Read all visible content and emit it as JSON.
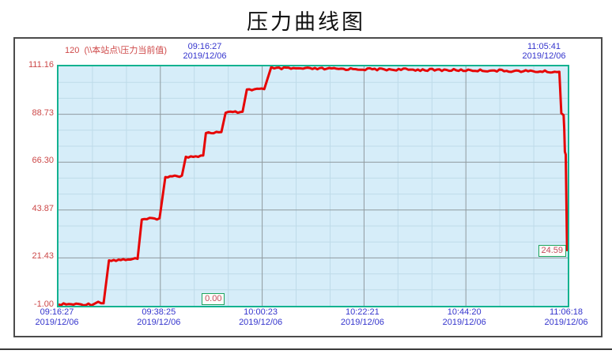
{
  "title": "压力曲线图",
  "header": {
    "pen_scale": "120",
    "pen_name": "(\\\\本站点\\压力当前值)",
    "cursor_time": "09:16:27",
    "cursor_date": "2019/12/06",
    "end_time": "11:05:41",
    "end_date": "2019/12/06"
  },
  "chart_data": {
    "type": "line",
    "title": "压力曲线图",
    "xlabel": "",
    "ylabel": "",
    "x_start": "09:16:27",
    "x_end": "11:06:18",
    "date": "2019/12/06",
    "ylim": [
      -1.0,
      111.16
    ],
    "y_ticks": [
      "111.16",
      "88.73",
      "66.30",
      "43.87",
      "21.43",
      "-1.00"
    ],
    "x_ticks": [
      {
        "time": "09:16:27",
        "date": "2019/12/06"
      },
      {
        "time": "09:38:25",
        "date": "2019/12/06"
      },
      {
        "time": "10:00:23",
        "date": "2019/12/06"
      },
      {
        "time": "10:22:21",
        "date": "2019/12/06"
      },
      {
        "time": "10:44:20",
        "date": "2019/12/06"
      },
      {
        "time": "11:06:18",
        "date": "2019/12/06"
      }
    ],
    "grid": true,
    "legend": "none",
    "plot_bg": "#d6edf9",
    "minor_grid_color": "#bedbe9",
    "major_grid_color": "#8f9a9e",
    "border_color": "#12b290",
    "series": [
      {
        "name": "\\\\本站点\\压力当前值",
        "color": "#e60505",
        "points": [
          {
            "t": "09:16:27",
            "v": -0.3
          },
          {
            "t": "09:24:00",
            "v": -0.3
          },
          {
            "t": "09:25:00",
            "v": 0.9
          },
          {
            "t": "09:25:40",
            "v": 0.2
          },
          {
            "t": "09:26:10",
            "v": 0.2
          },
          {
            "t": "09:27:20",
            "v": 20.3
          },
          {
            "t": "09:33:30",
            "v": 21.0
          },
          {
            "t": "09:34:25",
            "v": 39.4
          },
          {
            "t": "09:38:15",
            "v": 40.0
          },
          {
            "t": "09:39:30",
            "v": 59.3
          },
          {
            "t": "09:43:05",
            "v": 60.0
          },
          {
            "t": "09:43:55",
            "v": 68.8
          },
          {
            "t": "09:47:40",
            "v": 69.4
          },
          {
            "t": "09:48:15",
            "v": 79.9
          },
          {
            "t": "09:51:35",
            "v": 80.4
          },
          {
            "t": "09:52:30",
            "v": 89.4
          },
          {
            "t": "09:56:10",
            "v": 89.9
          },
          {
            "t": "09:57:05",
            "v": 100.3
          },
          {
            "t": "10:00:50",
            "v": 100.5
          },
          {
            "t": "10:02:20",
            "v": 110.8
          },
          {
            "t": "10:03:00",
            "v": 110.2
          },
          {
            "t": "10:20:00",
            "v": 109.9
          },
          {
            "t": "10:50:00",
            "v": 109.2
          },
          {
            "t": "11:04:30",
            "v": 108.6
          },
          {
            "t": "11:04:55",
            "v": 89.2
          },
          {
            "t": "11:05:25",
            "v": 88.3
          },
          {
            "t": "11:05:33",
            "v": 82.0
          },
          {
            "t": "11:05:41",
            "v": 71.2
          },
          {
            "t": "11:05:52",
            "v": 69.8
          },
          {
            "t": "11:06:10",
            "v": 24.59
          }
        ]
      }
    ],
    "markers": [
      {
        "label": "0.00",
        "time": "09:50:10",
        "value": 0.0
      },
      {
        "label": "24.59",
        "time": "11:06:10",
        "value": 24.59
      }
    ]
  }
}
